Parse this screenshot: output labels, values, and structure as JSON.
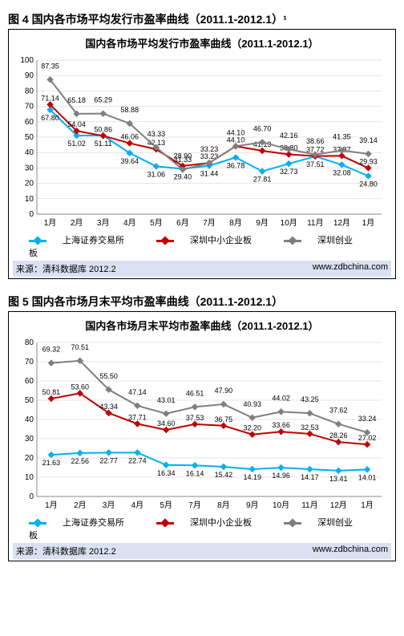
{
  "figures": [
    {
      "outer_title": "图 4  国内各市场平均发行市盈率曲线（2011.1-2012.1）¹",
      "inner_title": "国内各市场平均发行市盈率曲线（2011.1-2012.1）",
      "source": "来源：清科数据库 2012.2",
      "url": "www.zdbchina.com",
      "ylim": [
        0,
        100
      ],
      "ytick_step": 10,
      "categories": [
        "1月",
        "2月",
        "3月",
        "4月",
        "5月",
        "6月",
        "7月",
        "8月",
        "9月",
        "10月",
        "11月",
        "12月",
        "1月"
      ],
      "series": [
        {
          "name": "上海证券交易所",
          "color": "#00b0f0",
          "values": [
            67.8,
            51.02,
            51.11,
            39.64,
            31.06,
            29.4,
            31.44,
            36.78,
            27.81,
            32.73,
            37.51,
            32.08,
            24.8
          ]
        },
        {
          "name": "深圳中小企业板",
          "color": "#c00000",
          "values": [
            71.14,
            54.04,
            50.86,
            46.06,
            42.13,
            31.33,
            33.23,
            44.1,
            41.13,
            38.8,
            37.72,
            37.87,
            29.93
          ]
        },
        {
          "name": "深圳创业板",
          "color": "#7f7f7f",
          "values": [
            87.35,
            65.18,
            65.29,
            58.88,
            43.33,
            28.9,
            33.23,
            44.1,
            46.7,
            42.16,
            38.66,
            41.35,
            39.14
          ]
        }
      ]
    },
    {
      "outer_title": "图 5 国内各市场月末平均市盈率曲线（2011.1-2012.1）",
      "inner_title": "国内各市场月末平均市盈率曲线（2011.1-2012.1）",
      "source": "来源：清科数据库 2012.2",
      "url": "www.zdbchina.com",
      "ylim": [
        0,
        80
      ],
      "ytick_step": 10,
      "categories": [
        "1月",
        "2月",
        "3月",
        "4月",
        "5月",
        "7月",
        "8月",
        "9月",
        "10月",
        "11月",
        "12月",
        "1月"
      ],
      "series": [
        {
          "name": "上海证券交易所",
          "color": "#00b0f0",
          "values": [
            21.63,
            22.56,
            22.77,
            22.74,
            16.34,
            16.14,
            15.42,
            14.19,
            14.96,
            14.17,
            13.41,
            14.01
          ]
        },
        {
          "name": "深圳中小企业板",
          "color": "#c00000",
          "values": [
            50.81,
            53.6,
            43.34,
            37.71,
            34.6,
            37.53,
            36.75,
            32.2,
            33.66,
            32.53,
            28.26,
            27.02
          ]
        },
        {
          "name": "深圳创业板",
          "color": "#7f7f7f",
          "values": [
            69.32,
            70.51,
            55.5,
            47.14,
            43.01,
            46.51,
            47.9,
            40.93,
            44.02,
            43.25,
            37.62,
            33.24
          ]
        }
      ]
    }
  ]
}
